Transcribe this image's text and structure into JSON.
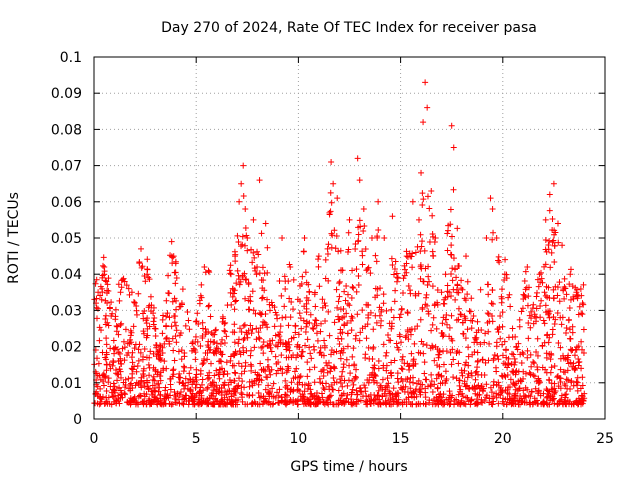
{
  "chart_data": {
    "type": "scatter",
    "title": "Day 270 of 2024, Rate Of TEC Index for receiver pasa",
    "xlabel": "GPS time / hours",
    "ylabel": "ROTI / TECUs",
    "xlim": [
      0,
      25
    ],
    "ylim": [
      0,
      0.1
    ],
    "xticks": [
      0,
      5,
      10,
      15,
      20,
      25
    ],
    "yticks": [
      0,
      0.01,
      0.02,
      0.03,
      0.04,
      0.05,
      0.06,
      0.07,
      0.08,
      0.09,
      0.1
    ],
    "xtick_labels": [
      "0",
      "5",
      "10",
      "15",
      "20",
      "25"
    ],
    "ytick_labels": [
      "0",
      "0.01",
      "0.02",
      "0.03",
      "0.04",
      "0.05",
      "0.06",
      "0.07",
      "0.08",
      "0.09",
      "0.1"
    ],
    "grid": true,
    "marker": "+",
    "color": "#ff0000",
    "x_data_range": [
      0,
      24
    ],
    "series": [
      {
        "name": "ROTI",
        "points": [
          [
            0.1,
            0.032
          ],
          [
            0.2,
            0.035
          ],
          [
            0.4,
            0.039
          ],
          [
            0.5,
            0.042
          ],
          [
            0.6,
            0.038
          ],
          [
            1.3,
            0.035
          ],
          [
            1.5,
            0.038
          ],
          [
            1.7,
            0.036
          ],
          [
            2.3,
            0.047
          ],
          [
            2.6,
            0.04
          ],
          [
            3.8,
            0.049
          ],
          [
            3.9,
            0.045
          ],
          [
            4.0,
            0.043
          ],
          [
            4.3,
            0.032
          ],
          [
            5.4,
            0.042
          ],
          [
            5.6,
            0.041
          ],
          [
            6.7,
            0.04
          ],
          [
            6.9,
            0.045
          ],
          [
            7.1,
            0.06
          ],
          [
            7.2,
            0.065
          ],
          [
            7.3,
            0.07
          ],
          [
            7.4,
            0.058
          ],
          [
            7.5,
            0.05
          ],
          [
            7.8,
            0.055
          ],
          [
            8.1,
            0.066
          ],
          [
            8.4,
            0.054
          ],
          [
            9.2,
            0.05
          ],
          [
            9.6,
            0.042
          ],
          [
            10.3,
            0.05
          ],
          [
            11.0,
            0.045
          ],
          [
            11.6,
            0.071
          ],
          [
            11.7,
            0.065
          ],
          [
            11.9,
            0.061
          ],
          [
            12.5,
            0.055
          ],
          [
            12.9,
            0.072
          ],
          [
            13.0,
            0.066
          ],
          [
            13.2,
            0.058
          ],
          [
            13.6,
            0.05
          ],
          [
            13.9,
            0.06
          ],
          [
            14.2,
            0.05
          ],
          [
            14.6,
            0.056
          ],
          [
            15.3,
            0.045
          ],
          [
            15.6,
            0.06
          ],
          [
            15.9,
            0.055
          ],
          [
            16.0,
            0.068
          ],
          [
            16.1,
            0.082
          ],
          [
            16.2,
            0.093
          ],
          [
            16.3,
            0.086
          ],
          [
            16.5,
            0.063
          ],
          [
            16.7,
            0.05
          ],
          [
            17.2,
            0.04
          ],
          [
            17.5,
            0.081
          ],
          [
            17.6,
            0.075
          ],
          [
            18.2,
            0.045
          ],
          [
            19.2,
            0.05
          ],
          [
            19.4,
            0.061
          ],
          [
            19.5,
            0.058
          ],
          [
            19.7,
            0.05
          ],
          [
            20.1,
            0.04
          ],
          [
            21.2,
            0.042
          ],
          [
            21.8,
            0.04
          ],
          [
            22.1,
            0.055
          ],
          [
            22.3,
            0.062
          ],
          [
            22.5,
            0.065
          ],
          [
            22.7,
            0.054
          ],
          [
            22.9,
            0.048
          ],
          [
            23.3,
            0.04
          ],
          [
            23.6,
            0.035
          ],
          [
            23.9,
            0.032
          ]
        ]
      }
    ]
  }
}
